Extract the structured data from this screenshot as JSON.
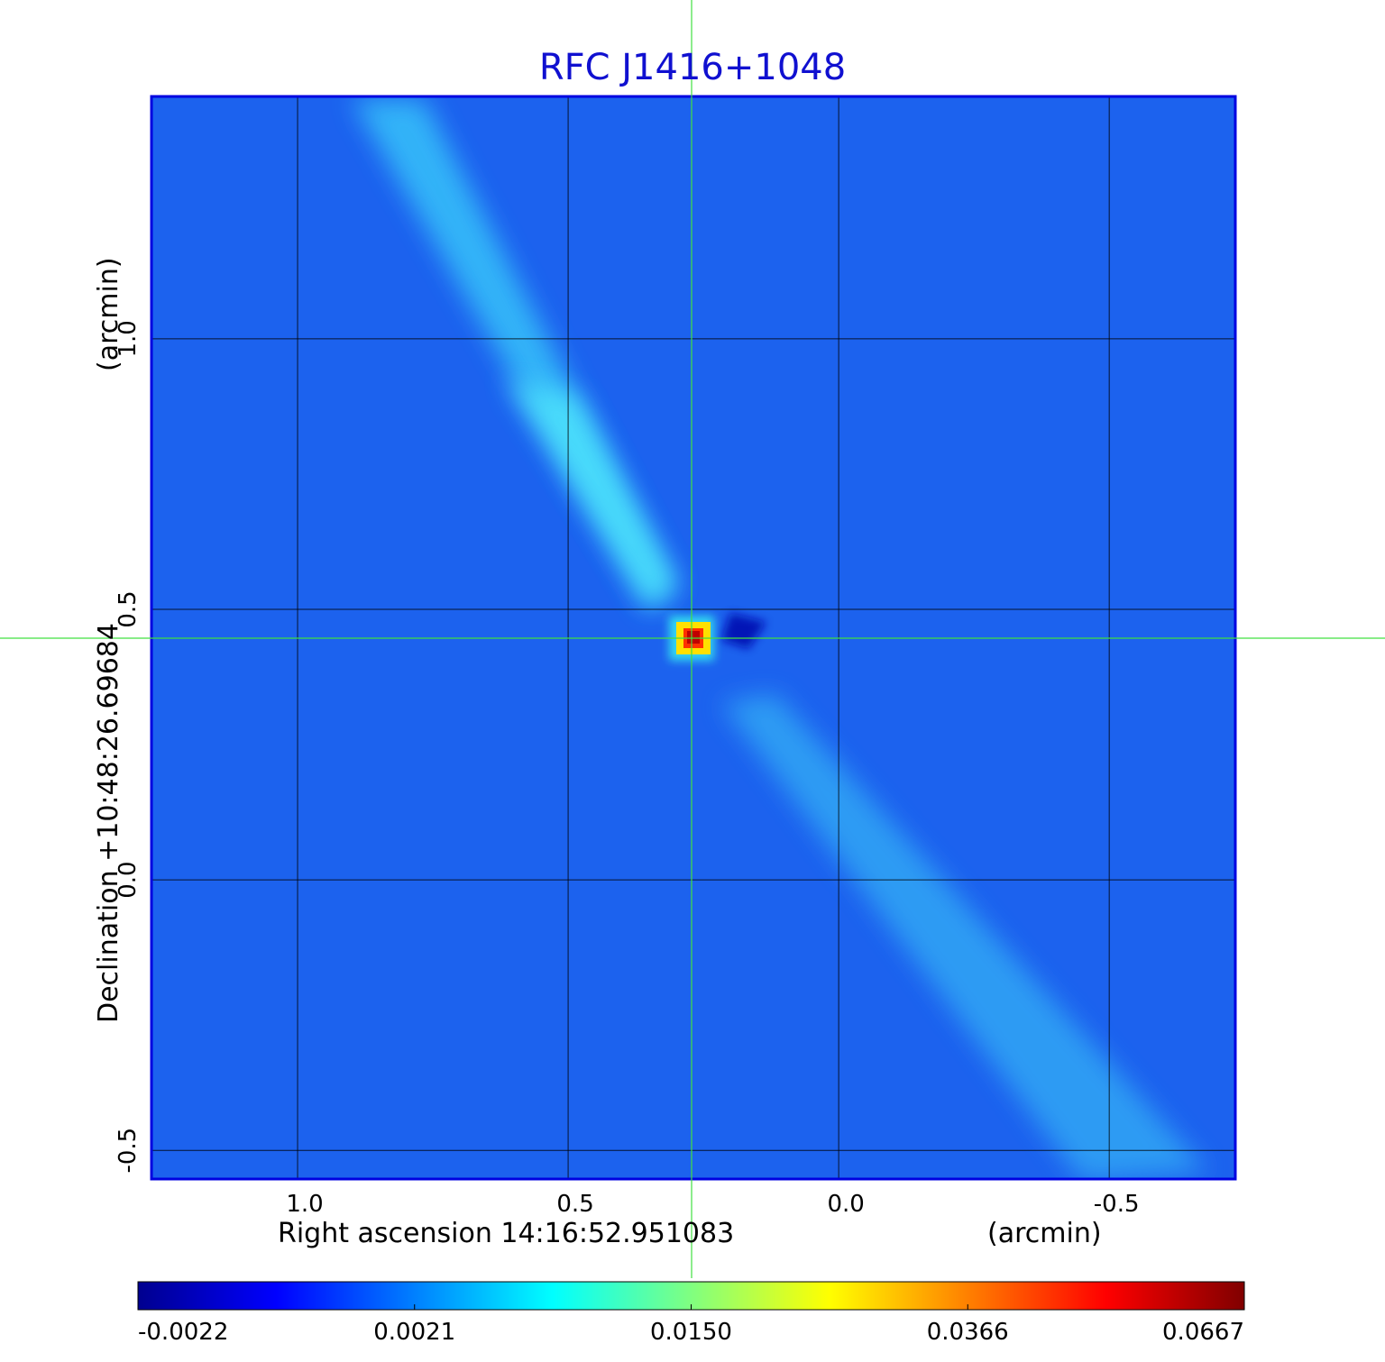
{
  "chart_data": {
    "type": "image",
    "title": "RFC J1416+1048",
    "xlabel": "Right ascension  14:16:52.951083",
    "xunit": "(arcmin)",
    "ylabel": "Declination  +10:48:26.69684",
    "yunit": "(arcmin)",
    "xlim": [
      1.27,
      -0.733
    ],
    "ylim": [
      -0.553,
      1.448
    ],
    "xticks": [
      {
        "value": 1,
        "label": "1.0"
      },
      {
        "value": 0.5,
        "label": "0.5"
      },
      {
        "value": 0,
        "label": "0.0"
      },
      {
        "value": -0.5,
        "label": "-0.5"
      }
    ],
    "yticks": [
      {
        "value": 1,
        "label": "1.0"
      },
      {
        "value": 0.5,
        "label": "0.5"
      },
      {
        "value": 0,
        "label": "0.0"
      },
      {
        "value": -0.5,
        "label": "-0.5"
      }
    ],
    "grid": true,
    "colorbar_ticks": [
      -0.0022,
      0.0021,
      {
        "value": 0.015,
        "label": "0.0150"
      },
      0.0366,
      0.0667
    ],
    "colormap": [
      "#00008f",
      "#0000ff",
      "#0080ff",
      "#00ffff",
      "#80ff80",
      "#ffff00",
      "#ff8000",
      "#ff0000",
      "#800000"
    ]
  }
}
